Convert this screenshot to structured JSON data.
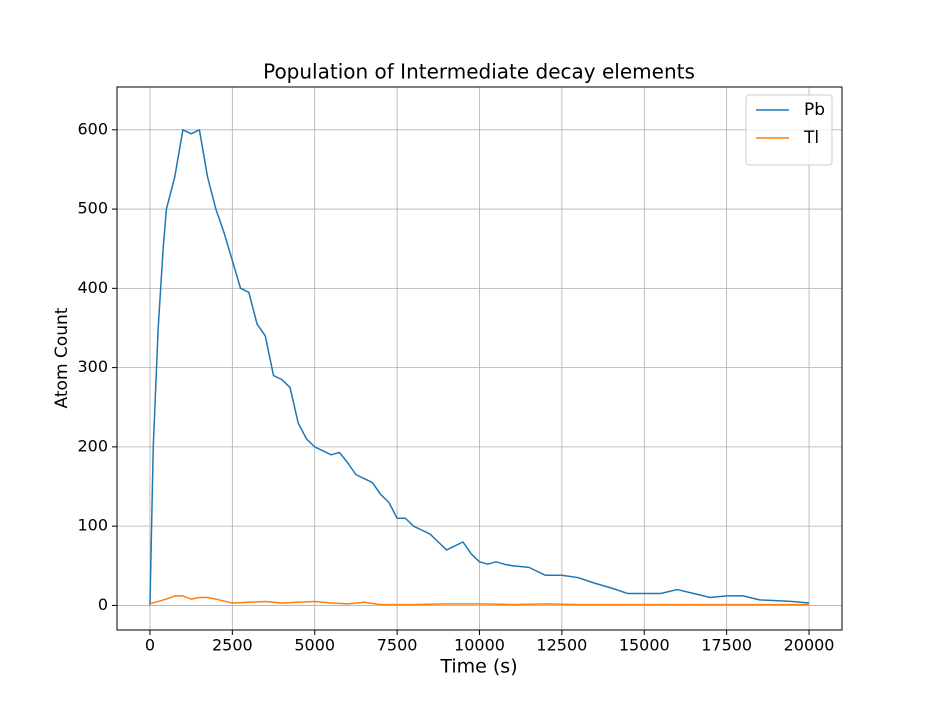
{
  "chart_data": {
    "type": "line",
    "title": "Population of Intermediate decay elements",
    "x_label": "Time (s)",
    "y_label": "Atom Count",
    "xlim": [
      -1000,
      21000
    ],
    "ylim": [
      -31,
      654
    ],
    "xticks": [
      0,
      2500,
      5000,
      7500,
      10000,
      12500,
      15000,
      17500,
      20000
    ],
    "yticks": [
      0,
      100,
      200,
      300,
      400,
      500,
      600
    ],
    "grid": true,
    "legend": "upper right",
    "series": [
      {
        "name": "Pb",
        "color": "#1f77b4",
        "x": [
          0,
          100,
          250,
          400,
          500,
          750,
          1000,
          1250,
          1500,
          1750,
          2000,
          2250,
          2500,
          2750,
          3000,
          3250,
          3500,
          3750,
          4000,
          4250,
          4500,
          4750,
          5000,
          5250,
          5500,
          5750,
          6000,
          6250,
          6500,
          6750,
          7000,
          7250,
          7500,
          7750,
          8000,
          8250,
          8500,
          8750,
          9000,
          9250,
          9500,
          9750,
          10000,
          10250,
          10500,
          10750,
          11000,
          11500,
          12000,
          12500,
          13000,
          13500,
          14000,
          14500,
          15000,
          15500,
          16000,
          16500,
          17000,
          17500,
          18000,
          18500,
          19000,
          19500,
          20000
        ],
        "values": [
          0,
          200,
          350,
          450,
          500,
          540,
          600,
          595,
          600,
          540,
          500,
          470,
          435,
          400,
          395,
          355,
          340,
          290,
          285,
          275,
          230,
          210,
          200,
          195,
          190,
          193,
          180,
          165,
          160,
          155,
          140,
          130,
          110,
          110,
          100,
          95,
          90,
          80,
          70,
          75,
          80,
          65,
          55,
          52,
          55,
          52,
          50,
          48,
          38,
          38,
          35,
          28,
          22,
          15,
          15,
          15,
          20,
          15,
          10,
          12,
          12,
          7,
          6,
          5,
          3
        ]
      },
      {
        "name": "Tl",
        "color": "#ff7f0e",
        "x": [
          0,
          250,
          500,
          750,
          1000,
          1250,
          1500,
          1750,
          2000,
          2500,
          3000,
          3500,
          4000,
          4500,
          5000,
          5500,
          6000,
          6500,
          7000,
          7500,
          8000,
          9000,
          10000,
          11000,
          12000,
          13000,
          14000,
          15000,
          16000,
          17000,
          18000,
          19000,
          20000
        ],
        "values": [
          2,
          5,
          8,
          12,
          12,
          8,
          10,
          10,
          8,
          3,
          4,
          5,
          3,
          4,
          5,
          3,
          2,
          4,
          1,
          1,
          1,
          2,
          2,
          1,
          2,
          1,
          1,
          1,
          1,
          1,
          1,
          1,
          1
        ]
      }
    ]
  }
}
